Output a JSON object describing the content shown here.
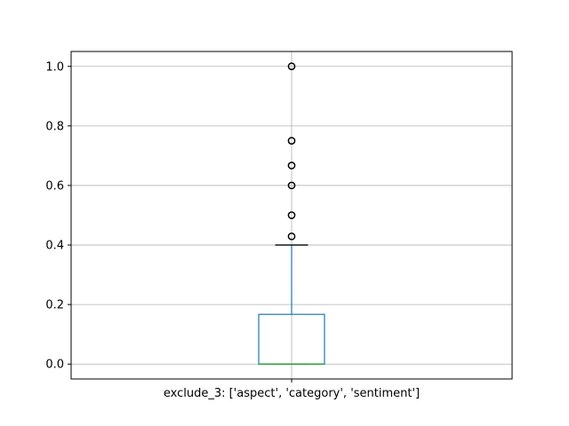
{
  "chart_data": {
    "type": "box",
    "title": "",
    "xlabel": "",
    "ylabel": "",
    "categories": [
      "exclude_3: ['aspect', 'category', 'sentiment']"
    ],
    "ylim": [
      -0.05,
      1.05
    ],
    "yticks": [
      0.0,
      0.2,
      0.4,
      0.6,
      0.8,
      1.0
    ],
    "ytick_labels": [
      "0.0",
      "0.2",
      "0.4",
      "0.6",
      "0.8",
      "1.0"
    ],
    "grid": true,
    "boxes": [
      {
        "category": "exclude_3: ['aspect', 'category', 'sentiment']",
        "q1": 0.0,
        "median": 0.0,
        "q3": 0.167,
        "whisker_low": 0.0,
        "whisker_high": 0.4,
        "outliers": [
          0.429,
          0.5,
          0.6,
          0.667,
          0.75,
          1.0
        ]
      }
    ],
    "colors": {
      "box": "#1f77b4",
      "median": "#2ca02c",
      "whisker": "#1f77b4",
      "cap": "#000000",
      "outlier": "#000000",
      "grid": "#b0b0b0",
      "axes": "#000000"
    }
  }
}
